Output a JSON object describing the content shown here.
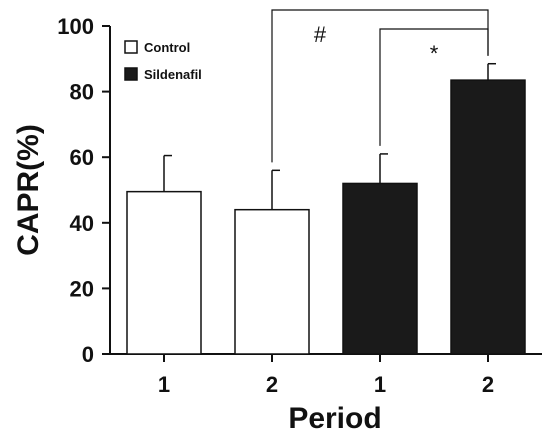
{
  "chart_data": {
    "type": "bar",
    "xlabel": "Period",
    "ylabel": "CAPR(%)",
    "ylim": [
      0,
      100
    ],
    "yticks": [
      0,
      20,
      40,
      60,
      80,
      100
    ],
    "categories": [
      "1",
      "2",
      "1",
      "2"
    ],
    "groups": [
      "Control",
      "Control",
      "Sildenafil",
      "Sildenafil"
    ],
    "values": [
      49.5,
      44,
      52,
      83.5
    ],
    "errors": [
      11,
      12,
      9,
      5
    ],
    "legend": [
      {
        "label": "Control",
        "fill": "#ffffff"
      },
      {
        "label": "Sildenafil",
        "fill": "#1a1a1a"
      }
    ],
    "legend_position": "top-left",
    "significance": [
      {
        "label": "#",
        "from": 1,
        "to": 3
      },
      {
        "label": "*",
        "from": 2,
        "to": 3
      }
    ],
    "grid": false
  },
  "colors": {
    "control_fill": "#ffffff",
    "sildenafil_fill": "#1a1a1a",
    "axis": "#111111"
  }
}
